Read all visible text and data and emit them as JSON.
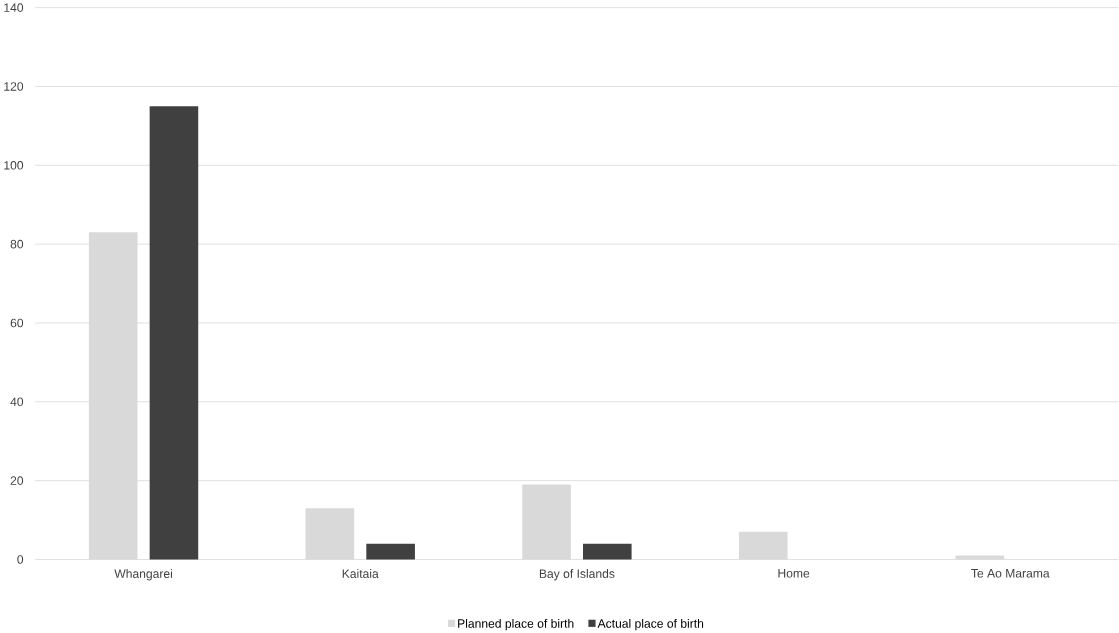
{
  "chart_data": {
    "type": "bar",
    "categories": [
      "Whangarei",
      "Kaitaia",
      "Bay of Islands",
      "Home",
      "Te Ao Marama"
    ],
    "series": [
      {
        "name": "Planned place of birth",
        "color": "#d9d9d9",
        "values": [
          83,
          13,
          19,
          7,
          1
        ]
      },
      {
        "name": "Actual place of birth",
        "color": "#404040",
        "values": [
          115,
          4,
          4,
          0,
          0
        ]
      }
    ],
    "ylim": [
      0,
      140
    ],
    "yticks": [
      0,
      20,
      40,
      60,
      80,
      100,
      120,
      140
    ],
    "grid": "y",
    "legend": "bottom"
  }
}
